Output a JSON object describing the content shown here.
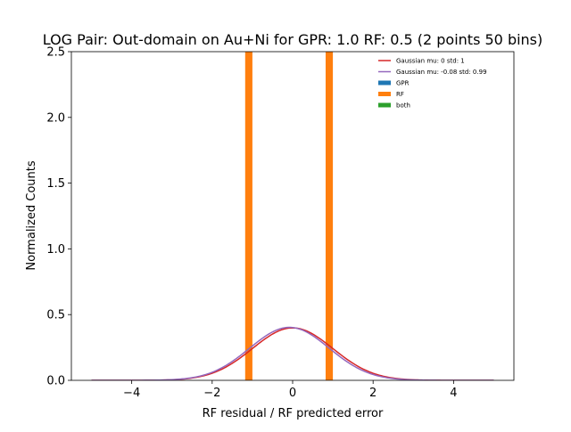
{
  "chart_data": {
    "type": "bar",
    "title": "LOG Pair: Out-domain on Au+Ni for GPR: 1.0 RF: 0.5 (2 points 50 bins)",
    "xlabel": "RF residual / RF predicted error",
    "ylabel": "Normalized Counts",
    "xlim": [
      -5.5,
      5.5
    ],
    "ylim": [
      0,
      2.5
    ],
    "xticks": [
      -4,
      -2,
      0,
      2,
      4
    ],
    "xtick_labels": [
      "−4",
      "−2",
      "0",
      "2",
      "4"
    ],
    "yticks": [
      0.0,
      0.5,
      1.0,
      1.5,
      2.0,
      2.5
    ],
    "ytick_labels": [
      "0.0",
      "0.5",
      "1.0",
      "1.5",
      "2.0",
      "2.5"
    ],
    "grid": false,
    "legend_position": "top-right",
    "bars": [
      {
        "series": "RF",
        "x_left": -1.18,
        "x_right": -1.0,
        "value": 2.5
      },
      {
        "series": "RF",
        "x_left": 0.82,
        "x_right": 1.0,
        "value": 2.5
      }
    ],
    "curves": [
      {
        "name": "Gaussian mu: 0 std: 1",
        "mu": 0,
        "std": 1,
        "x_range": [
          -5,
          5
        ],
        "color": "#d62728"
      },
      {
        "name": "Gaussian mu: -0.08 std: 0.99",
        "mu": -0.08,
        "std": 0.99,
        "x_range": [
          -5,
          5
        ],
        "color": "#9467bd"
      }
    ],
    "series": [
      {
        "name": "GPR",
        "color": "#1f77b4"
      },
      {
        "name": "RF",
        "color": "#ff7f0e"
      },
      {
        "name": "both",
        "color": "#2ca02c"
      }
    ],
    "legend": [
      {
        "label": "Gaussian mu: 0 std: 1",
        "kind": "line",
        "color": "#d62728"
      },
      {
        "label": "Gaussian mu: -0.08 std: 0.99",
        "kind": "line",
        "color": "#9467bd"
      },
      {
        "label": "GPR",
        "kind": "patch",
        "color": "#1f77b4"
      },
      {
        "label": "RF",
        "kind": "patch",
        "color": "#ff7f0e"
      },
      {
        "label": "both",
        "kind": "patch",
        "color": "#2ca02c"
      }
    ]
  }
}
